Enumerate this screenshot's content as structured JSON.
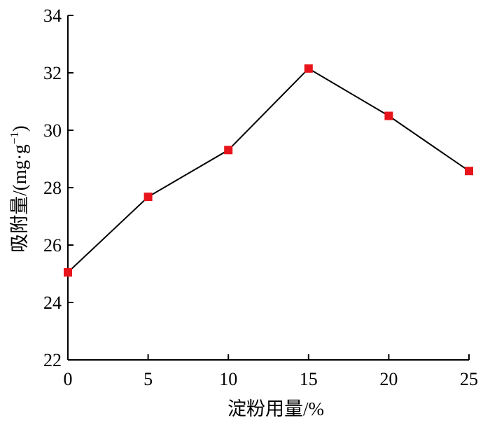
{
  "chart_data": {
    "type": "line",
    "x": [
      0,
      5,
      10,
      15,
      20,
      25
    ],
    "series": [
      {
        "values": [
          25.05,
          27.68,
          29.31,
          32.15,
          30.5,
          28.58
        ]
      }
    ],
    "xlabel": "淀粉用量/%",
    "ylabel": "吸附量/(mg·g",
    "ylabel_sup": "−1",
    "ylabel_close": ")",
    "xlim": [
      0,
      25
    ],
    "ylim": [
      22,
      34
    ],
    "xticks": [
      "0",
      "5",
      "10",
      "15",
      "20",
      "25"
    ],
    "yticks": [
      "22",
      "24",
      "26",
      "28",
      "30",
      "32",
      "34"
    ],
    "grid": false,
    "marker": "square",
    "line_color": "#000000",
    "marker_color": "#e8141b"
  }
}
